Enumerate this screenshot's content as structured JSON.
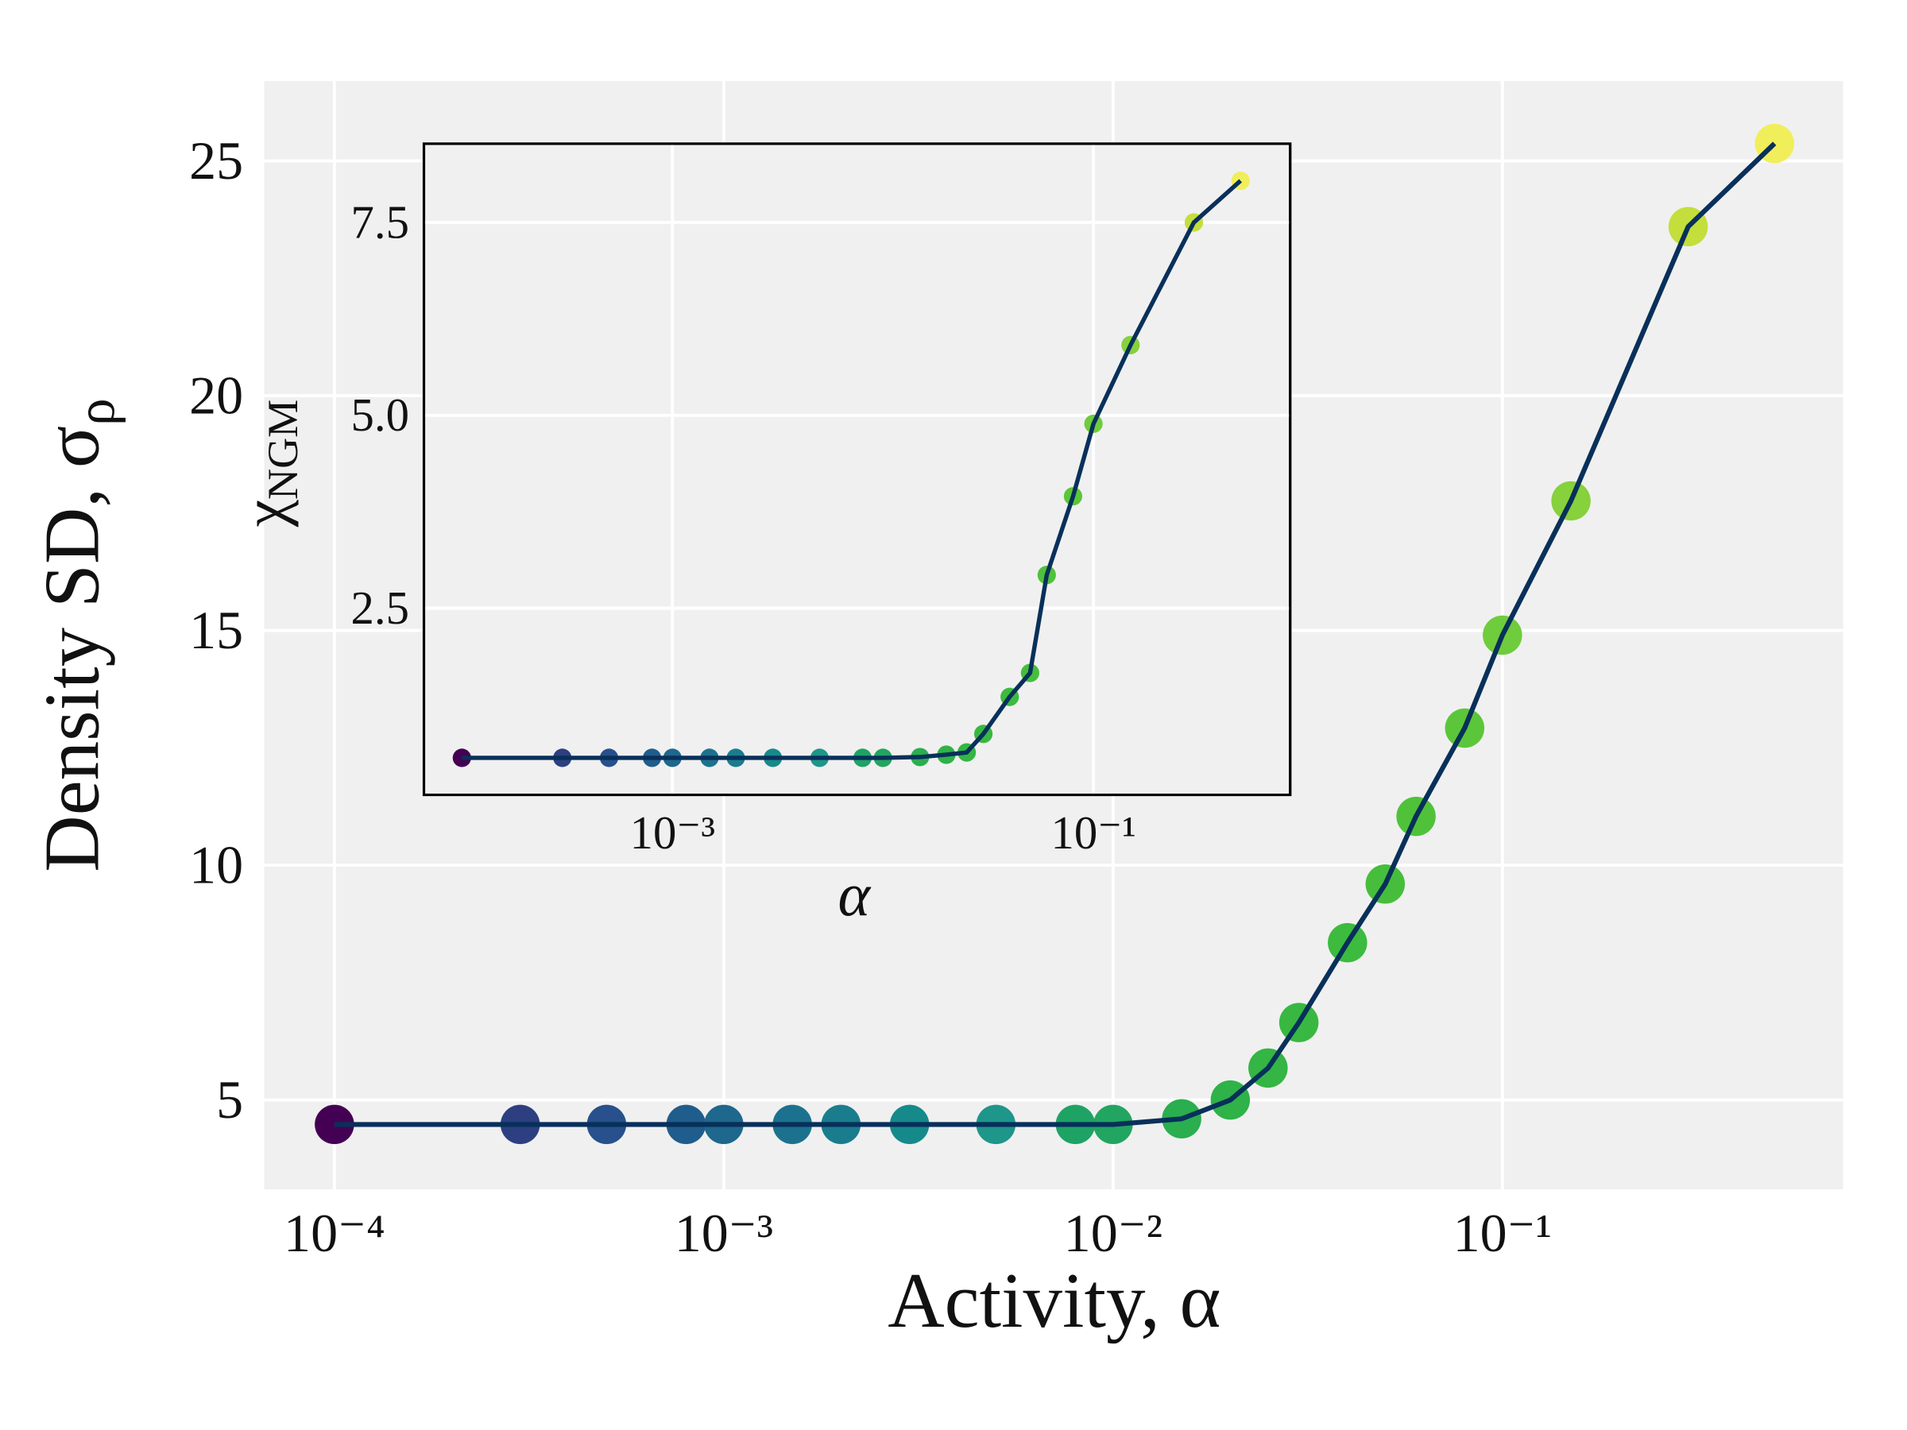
{
  "chart_data": [
    {
      "type": "line_scatter",
      "xlabel": "Activity, α",
      "ylabel": "Density SD, σ",
      "ylabel_sub": "ρ",
      "xscale": "log",
      "grid": true,
      "line_color": "#08305a",
      "x": [
        0.0001,
        0.0003,
        0.0005,
        0.0008,
        0.001,
        0.0015,
        0.002,
        0.003,
        0.005,
        0.008,
        0.01,
        0.015,
        0.02,
        0.025,
        0.03,
        0.04,
        0.05,
        0.06,
        0.08,
        0.1,
        0.15,
        0.3,
        0.5
      ],
      "values": [
        4.48,
        4.48,
        4.48,
        4.48,
        4.48,
        4.48,
        4.48,
        4.48,
        4.48,
        4.48,
        4.48,
        4.6,
        5.0,
        5.68,
        6.65,
        8.35,
        9.6,
        11.04,
        12.92,
        14.9,
        17.76,
        23.6,
        25.37
      ],
      "colors": [
        "#440154",
        "#2d3f81",
        "#27508c",
        "#1f5d8c",
        "#1e678d",
        "#1c728e",
        "#197d8d",
        "#168a8b",
        "#1e968a",
        "#1ea365",
        "#22a560",
        "#2aae4f",
        "#2fb248",
        "#34b544",
        "#38b841",
        "#3cbb3e",
        "#46be3c",
        "#50c23a",
        "#5cc63a",
        "#6fcc3c",
        "#86d13c",
        "#c4de3c",
        "#f1ee5b"
      ],
      "xlim": [
        6.6e-05,
        0.75
      ],
      "ylim": [
        3.1,
        26.7
      ],
      "xticks": [
        {
          "value": 0.0001,
          "label": "10⁻⁴"
        },
        {
          "value": 0.001,
          "label": "10⁻³"
        },
        {
          "value": 0.01,
          "label": "10⁻²"
        },
        {
          "value": 0.1,
          "label": "10⁻¹"
        }
      ],
      "yticks": [
        5,
        10,
        15,
        20,
        25
      ]
    },
    {
      "type": "line_scatter",
      "xlabel": "α",
      "ylabel": "χ",
      "ylabel_sub": "NGM",
      "xscale": "log",
      "grid": true,
      "line_color": "#08305a",
      "x": [
        0.0001,
        0.0003,
        0.0005,
        0.0008,
        0.001,
        0.0015,
        0.002,
        0.003,
        0.005,
        0.008,
        0.01,
        0.015,
        0.02,
        0.025,
        0.03,
        0.04,
        0.05,
        0.06,
        0.08,
        0.1,
        0.15,
        0.3,
        0.5
      ],
      "values": [
        0.56,
        0.56,
        0.56,
        0.56,
        0.56,
        0.56,
        0.56,
        0.56,
        0.56,
        0.56,
        0.56,
        0.57,
        0.6,
        0.63,
        0.87,
        1.35,
        1.66,
        2.93,
        3.95,
        4.89,
        5.91,
        7.5,
        8.04
      ],
      "colors": [
        "#440154",
        "#2d3f81",
        "#27508c",
        "#1f5d8c",
        "#1e678d",
        "#1c728e",
        "#197d8d",
        "#168a8b",
        "#1e968a",
        "#1ea365",
        "#22a560",
        "#2aae4f",
        "#2fb248",
        "#34b544",
        "#38b841",
        "#3cbb3e",
        "#46be3c",
        "#50c23a",
        "#5cc63a",
        "#6fcc3c",
        "#86d13c",
        "#c4de3c",
        "#f1ee5b"
      ],
      "xlim": [
        6.6e-05,
        0.86
      ],
      "ylim": [
        0.08,
        8.52
      ],
      "xticks": [
        {
          "value": 0.001,
          "label": "10⁻³"
        },
        {
          "value": 0.1,
          "label": "10⁻¹"
        }
      ],
      "yticks": [
        2.5,
        {
          "value": 5,
          "label": "5.0"
        },
        7.5
      ]
    }
  ]
}
